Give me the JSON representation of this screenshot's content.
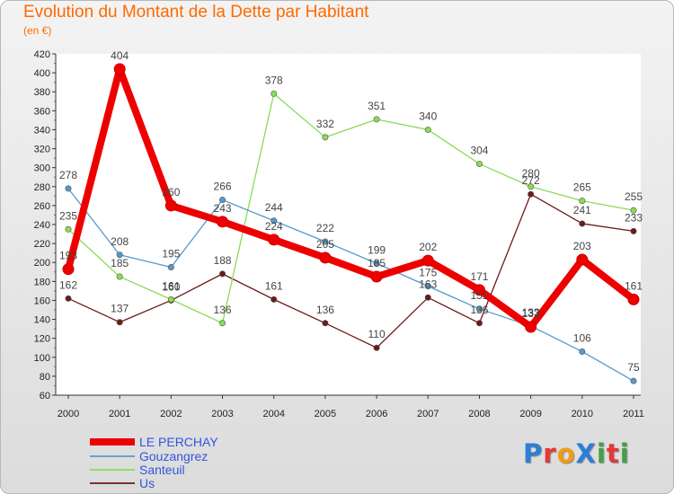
{
  "title": "Evolution du Montant de la Dette par Habitant",
  "unit": "(en €)",
  "logo_text": "ProXiti",
  "chart_data": {
    "type": "line",
    "title": "Evolution du Montant de la Dette par Habitant",
    "ylabel": "(en €)",
    "xlabel": "",
    "ylim": [
      60,
      420
    ],
    "yticks": [
      60,
      80,
      100,
      120,
      140,
      160,
      180,
      200,
      220,
      240,
      260,
      280,
      300,
      320,
      340,
      360,
      380,
      400,
      420
    ],
    "categories": [
      "2000",
      "2001",
      "2002",
      "2003",
      "2004",
      "2005",
      "2006",
      "2007",
      "2008",
      "2009",
      "2010",
      "2011"
    ],
    "legend_position": "bottom-left",
    "series": [
      {
        "name": "Us",
        "color": "#6b1a1a",
        "values": [
          162,
          137,
          160,
          188,
          161,
          136,
          110,
          163,
          136,
          272,
          241,
          233
        ]
      },
      {
        "name": "Santeuil",
        "color": "#88dd55",
        "values": [
          235,
          185,
          161,
          136,
          378,
          332,
          351,
          340,
          304,
          280,
          265,
          255
        ]
      },
      {
        "name": "Gouzangrez",
        "color": "#5599cc",
        "values": [
          278,
          208,
          195,
          266,
          244,
          222,
          199,
          175,
          151,
          133,
          106,
          75
        ]
      },
      {
        "name": "LE PERCHAY",
        "color": "#ee0000",
        "values": [
          193,
          404,
          260,
          243,
          224,
          205,
          185,
          202,
          171,
          132,
          203,
          161
        ]
      }
    ],
    "data_labels": [
      {
        "series": "Us",
        "labels": [
          "162",
          "137",
          "160",
          "188",
          "161",
          "136",
          "110",
          "163",
          "136",
          "272",
          "241",
          "233"
        ]
      },
      {
        "series": "Santeuil",
        "labels": [
          "235",
          "185",
          "161",
          "136",
          "378",
          "332",
          "351",
          "340",
          "304",
          "280",
          "265",
          "255"
        ]
      },
      {
        "series": "Gouzangrez",
        "labels": [
          "278",
          "208",
          "195",
          "266",
          "244",
          "222",
          "199",
          "175",
          "151",
          "133",
          "106",
          "75"
        ]
      },
      {
        "series": "LE PERCHAY",
        "labels": [
          "193",
          "404",
          "260",
          "243",
          "224",
          "205",
          "185",
          "202",
          "171",
          "132",
          "203",
          "161"
        ]
      }
    ],
    "legend": [
      "LE PERCHAY",
      "Gouzangrez",
      "Santeuil",
      "Us"
    ]
  }
}
